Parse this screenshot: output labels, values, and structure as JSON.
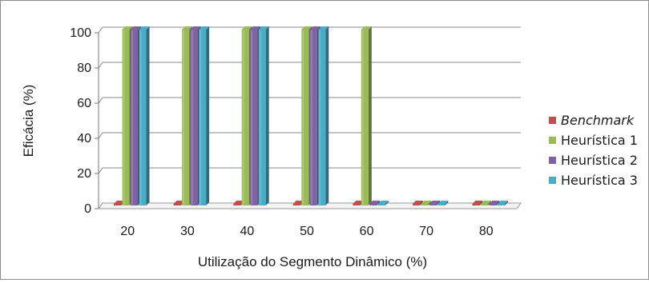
{
  "chart_data": {
    "type": "bar",
    "xlabel": "Utilização do Segmento Dinâmico (%)",
    "ylabel": "Eficácia (%)",
    "categories": [
      "20",
      "30",
      "40",
      "50",
      "60",
      "70",
      "80"
    ],
    "ylim": [
      0,
      100
    ],
    "yticks": [
      "0",
      "20",
      "40",
      "60",
      "80",
      "100"
    ],
    "grid": true,
    "legend_position": "right",
    "series": [
      {
        "name": "Benchmark",
        "italic": true,
        "color": "#c0504d",
        "values": [
          0,
          0,
          0,
          0,
          0,
          0,
          0
        ]
      },
      {
        "name": "Heurística 1",
        "italic": false,
        "color": "#9bbb59",
        "values": [
          100,
          100,
          100,
          100,
          100,
          0,
          0
        ]
      },
      {
        "name": "Heurística 2",
        "italic": false,
        "color": "#8064a2",
        "values": [
          100,
          100,
          100,
          100,
          0,
          0,
          0
        ]
      },
      {
        "name": "Heurística 3",
        "italic": false,
        "color": "#4bacc6",
        "values": [
          100,
          100,
          100,
          100,
          0,
          0,
          0
        ]
      }
    ]
  }
}
